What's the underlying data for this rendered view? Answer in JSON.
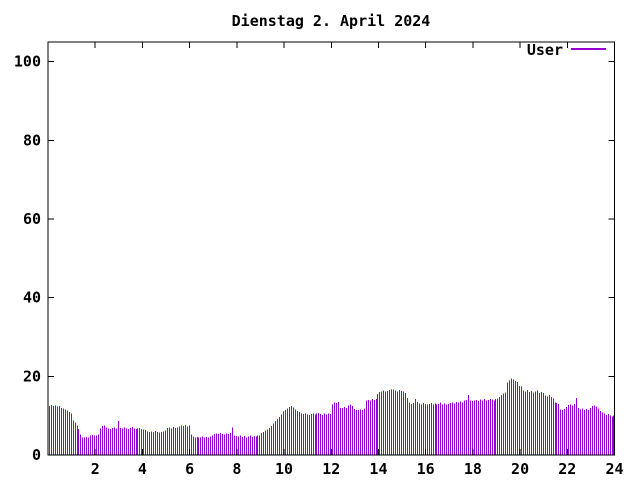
{
  "window": {
    "background": "#ffffff"
  },
  "chart_data": {
    "type": "bar",
    "style": "impulses",
    "title": "Dienstag 2. April 2024",
    "legend": {
      "label": "User",
      "position": "top-right"
    },
    "xlabel": "",
    "ylabel": "",
    "xlim": [
      0,
      24
    ],
    "ylim": [
      0,
      105
    ],
    "x_ticks": [
      2,
      4,
      6,
      8,
      10,
      12,
      14,
      16,
      18,
      20,
      22,
      24
    ],
    "y_ticks": [
      0,
      20,
      40,
      60,
      80,
      100
    ],
    "grid": false,
    "axis_color": "#000000",
    "text_color": "#000000",
    "x": {
      "start_hour": 0,
      "end_hour": 24,
      "interval_minutes": 5,
      "samples": 288
    },
    "series": [
      {
        "name": "User",
        "color": "#9400d3",
        "values": [
          12.5,
          12.7,
          12.4,
          12.6,
          12.3,
          12.5,
          12.0,
          11.8,
          11.6,
          11.3,
          10.9,
          10.6,
          8.8,
          8.2,
          7.5,
          6.6,
          5.2,
          4.5,
          4.4,
          4.6,
          4.4,
          4.9,
          5.1,
          5.0,
          5.0,
          5.2,
          6.8,
          7.4,
          7.5,
          7.0,
          6.8,
          6.6,
          6.9,
          7.0,
          6.7,
          8.6,
          6.9,
          6.7,
          7.0,
          6.8,
          6.6,
          6.9,
          7.1,
          6.8,
          6.6,
          6.7,
          6.9,
          6.6,
          6.5,
          6.3,
          6.0,
          5.8,
          6.0,
          5.9,
          6.1,
          5.8,
          5.7,
          5.9,
          6.0,
          6.2,
          6.9,
          7.0,
          6.8,
          7.1,
          6.9,
          7.0,
          7.3,
          7.5,
          7.4,
          7.6,
          7.3,
          7.5,
          5.2,
          4.7,
          4.5,
          4.6,
          4.4,
          4.5,
          4.7,
          4.4,
          4.6,
          4.5,
          4.7,
          4.9,
          5.4,
          5.5,
          5.3,
          5.6,
          5.4,
          5.2,
          5.5,
          5.3,
          5.6,
          7.0,
          5.0,
          4.8,
          4.7,
          4.9,
          4.6,
          4.8,
          4.5,
          4.7,
          4.9,
          4.6,
          4.8,
          4.7,
          4.9,
          5.0,
          5.6,
          5.9,
          6.2,
          6.5,
          6.9,
          7.4,
          8.0,
          8.6,
          9.2,
          9.7,
          10.3,
          11.0,
          11.4,
          11.8,
          12.2,
          12.5,
          12.1,
          11.6,
          11.2,
          10.9,
          10.6,
          10.4,
          10.5,
          10.3,
          10.2,
          10.4,
          10.6,
          10.3,
          10.5,
          10.7,
          10.4,
          10.2,
          10.5,
          10.3,
          10.6,
          10.4,
          12.9,
          13.4,
          13.2,
          13.5,
          12.0,
          11.9,
          12.2,
          12.0,
          12.6,
          12.8,
          12.5,
          11.7,
          11.5,
          11.4,
          11.6,
          11.5,
          11.8,
          13.8,
          14.0,
          13.9,
          14.2,
          14.0,
          14.3,
          15.5,
          16.0,
          16.2,
          16.4,
          16.1,
          16.3,
          16.5,
          16.6,
          16.7,
          16.4,
          16.2,
          16.5,
          16.3,
          16.1,
          15.8,
          14.5,
          13.4,
          13.0,
          13.2,
          14.3,
          13.5,
          13.1,
          12.9,
          13.2,
          13.0,
          12.8,
          13.0,
          13.2,
          12.9,
          13.1,
          12.8,
          13.0,
          13.3,
          12.9,
          13.1,
          12.8,
          13.0,
          13.2,
          13.4,
          13.1,
          13.5,
          13.3,
          13.6,
          13.4,
          13.8,
          14.0,
          15.3,
          13.9,
          13.7,
          13.8,
          14.0,
          13.7,
          14.1,
          13.9,
          14.2,
          13.8,
          14.0,
          14.3,
          14.1,
          13.9,
          14.2,
          14.4,
          14.8,
          15.2,
          15.6,
          15.9,
          18.4,
          19.0,
          19.5,
          19.2,
          18.8,
          18.5,
          17.6,
          17.4,
          16.4,
          16.2,
          16.5,
          16.0,
          16.3,
          15.9,
          16.1,
          16.4,
          15.8,
          16.0,
          15.7,
          15.1,
          14.9,
          15.2,
          14.7,
          14.4,
          13.3,
          13.2,
          13.0,
          11.6,
          11.4,
          11.7,
          12.2,
          12.7,
          12.9,
          12.6,
          13.0,
          14.5,
          12.0,
          11.6,
          11.8,
          11.4,
          11.7,
          11.5,
          11.9,
          12.4,
          12.6,
          12.3,
          11.8,
          11.2,
          10.8,
          10.5,
          10.2,
          10.4,
          10.0,
          9.8,
          10.1
        ]
      }
    ]
  }
}
